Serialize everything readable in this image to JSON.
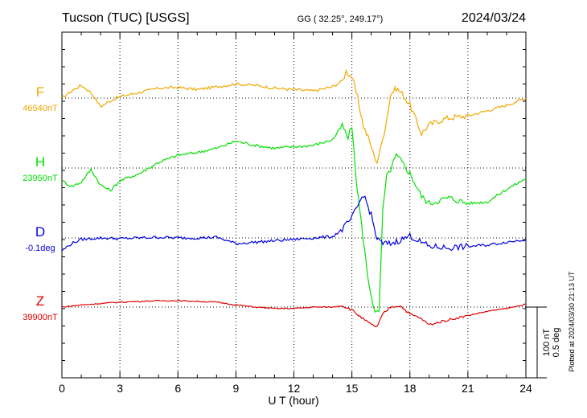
{
  "chart_data": {
    "type": "line",
    "title_left": "Tucson (TUC)  [USGS]",
    "title_center": "GG ( 32.25°, 249.17°)",
    "date": "2024/03/24",
    "xlabel": "U T (hour)",
    "xlim": [
      0,
      24
    ],
    "xticks": [
      "0",
      "3",
      "6",
      "9",
      "12",
      "15",
      "18",
      "21",
      "24"
    ],
    "scale_label_1": "100 nT",
    "scale_label_2": "0.5 deg",
    "plotted_note": "Plotted at 2024/03/30 21:13 UT",
    "grid": true,
    "series": [
      {
        "name": "F",
        "baseline_label": "46540nT",
        "color": "#f0a800",
        "units": "nT from baseline",
        "x": [
          0,
          0.5,
          1,
          1.5,
          2,
          2.5,
          3,
          4,
          5,
          6,
          7,
          8,
          9,
          10,
          11,
          12,
          13,
          14,
          14.5,
          14.7,
          15,
          15.3,
          15.6,
          15.9,
          16.1,
          16.3,
          16.5,
          16.8,
          17,
          17.3,
          17.6,
          18,
          18.3,
          18.6,
          19,
          19.5,
          20,
          21,
          22,
          23,
          24
        ],
        "values": [
          0,
          10,
          18,
          8,
          -12,
          -4,
          2,
          8,
          14,
          15,
          12,
          16,
          20,
          18,
          14,
          12,
          10,
          16,
          24,
          38,
          30,
          0,
          -40,
          -60,
          -78,
          -90,
          -70,
          -30,
          5,
          14,
          6,
          -10,
          -30,
          -50,
          -38,
          -32,
          -28,
          -25,
          -18,
          -10,
          0
        ]
      },
      {
        "name": "H",
        "baseline_label": "23950nT",
        "color": "#00e000",
        "units": "nT from baseline",
        "x": [
          0,
          0.5,
          1,
          1.5,
          2,
          2.5,
          3,
          4,
          5,
          6,
          7,
          8,
          9,
          10,
          11,
          12,
          13,
          14,
          14.5,
          14.8,
          15,
          15.2,
          15.5,
          15.8,
          16,
          16.2,
          16.4,
          16.6,
          16.8,
          17,
          17.3,
          17.6,
          18,
          18.3,
          18.6,
          19,
          19.5,
          20,
          21,
          22,
          23,
          24
        ],
        "values": [
          -18,
          -26,
          -20,
          -2,
          -24,
          -32,
          -18,
          -8,
          8,
          18,
          22,
          28,
          38,
          32,
          28,
          30,
          32,
          40,
          60,
          42,
          60,
          -10,
          -80,
          -150,
          -180,
          -205,
          -205,
          -60,
          -12,
          -2,
          18,
          8,
          -8,
          -24,
          -40,
          -50,
          -46,
          -42,
          -50,
          -48,
          -30,
          -15
        ]
      },
      {
        "name": "D",
        "baseline_label": "-0.1deg",
        "color": "#0000e0",
        "units": "nT-equivalent from baseline",
        "x": [
          0,
          0.5,
          1,
          2,
          3,
          4,
          5,
          6,
          7,
          8,
          9,
          10,
          11,
          12,
          13,
          14,
          14.5,
          15,
          15.3,
          15.6,
          16,
          16.3,
          16.6,
          17,
          17.3,
          17.6,
          18,
          18.5,
          19,
          20,
          21,
          22,
          23,
          24
        ],
        "values": [
          -18,
          -8,
          -2,
          0,
          -1,
          0,
          1,
          0,
          0,
          1,
          -8,
          -6,
          -4,
          -2,
          0,
          2,
          12,
          28,
          45,
          62,
          32,
          -2,
          -8,
          -8,
          -5,
          -2,
          3,
          -5,
          -12,
          -14,
          -12,
          -10,
          -6,
          -2
        ]
      },
      {
        "name": "Z",
        "baseline_label": "39900nT",
        "color": "#e00000",
        "units": "nT from baseline",
        "x": [
          0,
          1,
          2,
          3,
          4,
          5,
          6,
          7,
          8,
          9,
          10,
          11,
          12,
          13,
          14,
          14.5,
          15,
          15.5,
          16,
          16.3,
          16.6,
          17,
          17.5,
          18,
          18.5,
          19,
          20,
          21,
          22,
          23,
          24
        ],
        "values": [
          0,
          3,
          5,
          7,
          8,
          9,
          9,
          8,
          7,
          3,
          0,
          -2,
          -2,
          0,
          0,
          2,
          -4,
          -15,
          -25,
          -28,
          -10,
          0,
          2,
          -10,
          -15,
          -25,
          -18,
          -12,
          -6,
          -2,
          4
        ]
      }
    ]
  }
}
